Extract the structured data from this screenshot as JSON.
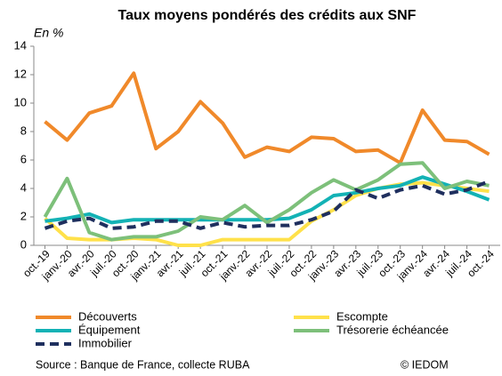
{
  "chart_data": {
    "type": "line",
    "title": "Taux  moyens pondérés des crédits aux SNF",
    "y_label": "En %",
    "categories": [
      "oct.-19",
      "janv.-20",
      "avr.-20",
      "juil.-20",
      "oct.-20",
      "janv.-21",
      "avr.-21",
      "juil.-21",
      "oct.-21",
      "janv.-22",
      "avr.-22",
      "juil.-22",
      "oct.-22",
      "janv.-23",
      "avr.-23",
      "juil.-23",
      "oct.-23",
      "janv.-24",
      "avr.-24",
      "juil.-24",
      "oct.-24"
    ],
    "series": [
      {
        "name": "Découverts",
        "color": "#f0892a",
        "values": [
          8.7,
          7.4,
          9.3,
          9.8,
          12.1,
          6.8,
          8.0,
          10.1,
          8.6,
          6.2,
          6.9,
          6.6,
          7.6,
          7.5,
          6.6,
          6.7,
          5.8,
          9.5,
          7.4,
          7.3,
          6.4
        ]
      },
      {
        "name": "Escompte",
        "color": "#ffe14a",
        "values": [
          1.9,
          0.5,
          0.4,
          0.4,
          0.5,
          0.4,
          0.0,
          0.0,
          0.4,
          0.4,
          0.4,
          0.4,
          1.7,
          2.5,
          3.5,
          4.0,
          4.3,
          4.4,
          4.2,
          4.0,
          3.8
        ]
      },
      {
        "name": "Équipement",
        "color": "#13b2b5",
        "values": [
          1.7,
          1.9,
          2.2,
          1.6,
          1.8,
          1.8,
          1.8,
          1.8,
          1.8,
          1.8,
          1.8,
          1.9,
          2.5,
          3.5,
          3.7,
          4.0,
          4.2,
          4.8,
          4.3,
          3.8,
          3.2
        ]
      },
      {
        "name": "Trésorerie échéancée",
        "color": "#7dc07a",
        "values": [
          2.0,
          4.7,
          0.9,
          0.4,
          0.6,
          0.6,
          1.0,
          2.0,
          1.8,
          2.8,
          1.6,
          2.5,
          3.7,
          4.6,
          3.9,
          4.6,
          5.7,
          5.8,
          4.0,
          4.5,
          4.2
        ]
      },
      {
        "name": "Immobilier",
        "color": "#1f2f5e",
        "dashed": true,
        "values": [
          1.2,
          1.7,
          1.9,
          1.2,
          1.3,
          1.7,
          1.7,
          1.2,
          1.6,
          1.3,
          1.4,
          1.4,
          1.8,
          2.4,
          3.9,
          3.3,
          3.9,
          4.2,
          3.6,
          3.9,
          4.5
        ]
      }
    ],
    "ylim": [
      0,
      14
    ],
    "yticks": [
      0,
      2,
      4,
      6,
      8,
      10,
      12,
      14
    ],
    "grid": false,
    "source": "Source : Banque de France, collecte RUBA",
    "credit": "© IEDOM"
  }
}
